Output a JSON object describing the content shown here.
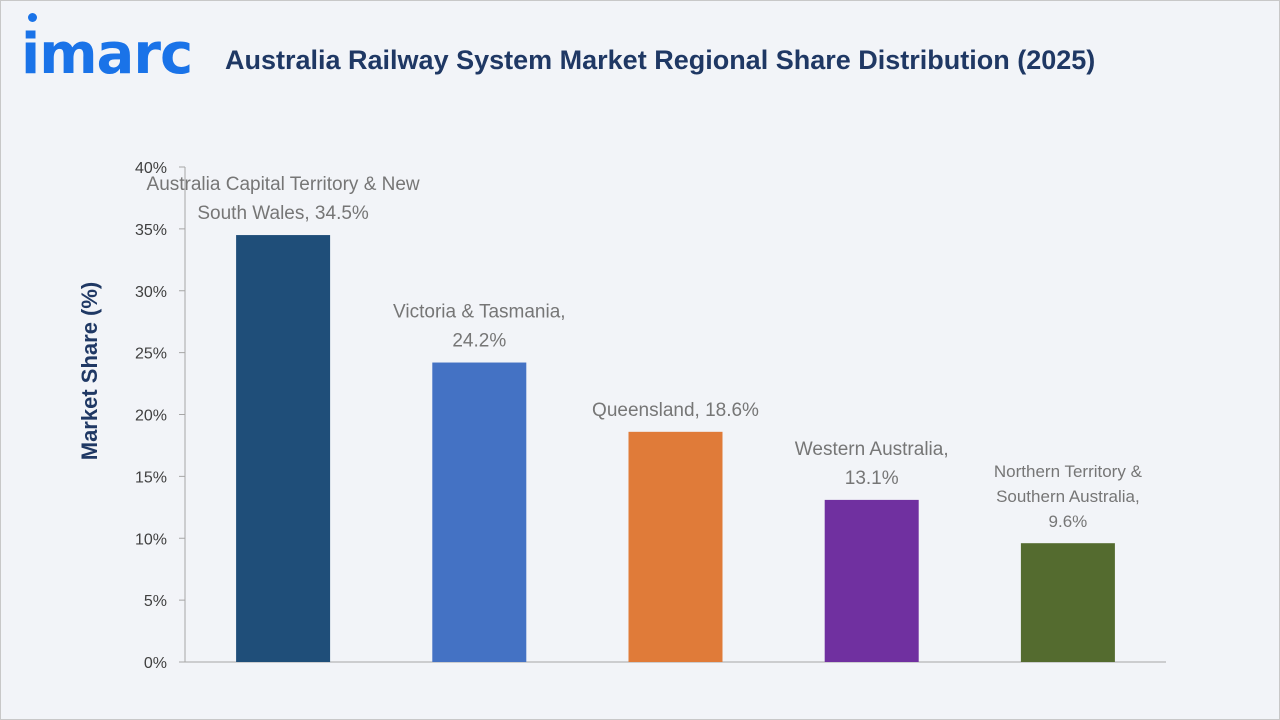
{
  "header": {
    "logo_text": "imarc",
    "title": "Australia Railway System Market Regional Share Distribution (2025)"
  },
  "colors": {
    "logo": "#1a73e8",
    "title": "#1f3864",
    "axis": "#a6a6a6"
  },
  "chart_data": {
    "type": "bar",
    "title": "Australia Railway System Market Regional Share Distribution (2025)",
    "ylabel": "Market Share (%)",
    "xlabel": "",
    "ylim": [
      0,
      40
    ],
    "yticks": [
      "0%",
      "5%",
      "10%",
      "15%",
      "20%",
      "25%",
      "30%",
      "35%",
      "40%"
    ],
    "grid": false,
    "categories": [
      "Australia Capital Territory & New South Wales",
      "Victoria & Tasmania",
      "Queensland",
      "Western Australia",
      "Northern Territory & Southern Australia"
    ],
    "values": [
      34.5,
      24.2,
      18.6,
      13.1,
      9.6
    ],
    "colors": [
      "#1f4e79",
      "#4472c4",
      "#e07b39",
      "#7030a0",
      "#546b2f"
    ],
    "data_labels": [
      [
        "Australia Capital Territory & New",
        "South Wales, 34.5%"
      ],
      [
        "Victoria & Tasmania,",
        "24.2%"
      ],
      [
        "Queensland, 18.6%"
      ],
      [
        "Western Australia,",
        "13.1%"
      ],
      [
        "Northern Territory &",
        "Southern Australia,",
        "9.6%"
      ]
    ]
  }
}
